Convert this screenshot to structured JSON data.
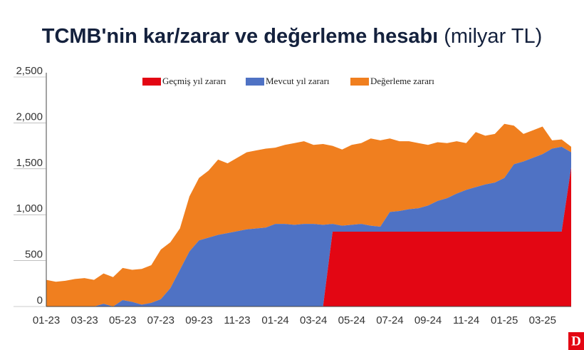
{
  "chart_data": {
    "type": "stacked-area",
    "title": "TCMB'nin kar/zarar ve değerleme hesabı",
    "subtitle": "(milyar TL)",
    "logo": "D",
    "categories": [
      "01-23",
      null,
      null,
      null,
      "03-23",
      null,
      null,
      null,
      "05-23",
      null,
      null,
      null,
      "07-23",
      null,
      null,
      null,
      "09-23",
      null,
      null,
      null,
      "11-23",
      null,
      null,
      null,
      "01-24",
      null,
      null,
      null,
      "03-24",
      null,
      null,
      null,
      "05-24",
      null,
      null,
      null,
      "07-24",
      null,
      null,
      null,
      "09-24",
      null,
      null,
      null,
      "11-24",
      null,
      null,
      null,
      "01-25",
      null,
      null,
      null,
      "03-25",
      null,
      null,
      null
    ],
    "series": [
      {
        "name": "Geçmiş yıl zararı",
        "color": "#e30613",
        "values": [
          0,
          0,
          0,
          0,
          0,
          0,
          0,
          0,
          0,
          0,
          0,
          0,
          0,
          0,
          0,
          0,
          0,
          0,
          0,
          0,
          0,
          0,
          0,
          0,
          0,
          0,
          0,
          0,
          0,
          0,
          815,
          815,
          815,
          815,
          815,
          815,
          815,
          815,
          815,
          815,
          815,
          815,
          815,
          815,
          815,
          815,
          815,
          815,
          815,
          815,
          815,
          815,
          815,
          815,
          815,
          1514
        ]
      },
      {
        "name": "Mevcut yıl zararı",
        "color": "#4f72c4",
        "values": [
          0,
          0,
          0,
          0,
          0,
          0,
          30,
          0,
          70,
          50,
          20,
          40,
          80,
          200,
          400,
          600,
          720,
          750,
          780,
          800,
          820,
          840,
          850,
          860,
          900,
          900,
          890,
          900,
          900,
          890,
          85,
          65,
          75,
          85,
          65,
          55,
          215,
          225,
          245,
          255,
          285,
          335,
          365,
          415,
          455,
          485,
          515,
          535,
          585,
          735,
          765,
          805,
          845,
          905,
          925,
          166
        ]
      },
      {
        "name": "Değerleme zararı",
        "color": "#f07f1f",
        "values": [
          290,
          270,
          280,
          300,
          310,
          290,
          330,
          320,
          350,
          350,
          390,
          410,
          540,
          500,
          450,
          600,
          680,
          730,
          820,
          760,
          800,
          840,
          850,
          860,
          830,
          860,
          890,
          900,
          860,
          880,
          850,
          830,
          870,
          880,
          950,
          940,
          800,
          760,
          740,
          710,
          660,
          640,
          600,
          570,
          510,
          600,
          530,
          530,
          590,
          420,
          300,
          300,
          300,
          90,
          80,
          60
        ]
      }
    ],
    "ylim": [
      0,
      2500
    ],
    "yticks": [
      0,
      500,
      {
        "value": 1000,
        "label": "1,000"
      },
      {
        "value": 1500,
        "label": "1,500"
      },
      {
        "value": 2000,
        "label": "2,000"
      },
      {
        "value": 2500,
        "label": "2,500"
      }
    ]
  }
}
